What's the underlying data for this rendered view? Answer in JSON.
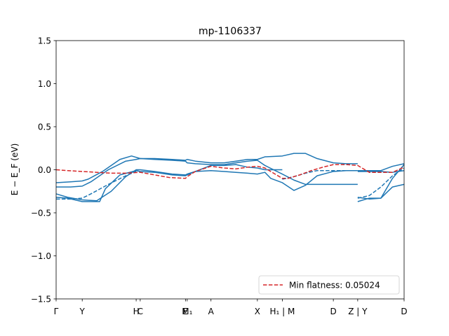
{
  "chart_data": {
    "type": "line",
    "title": "mp-1106337",
    "xlabel": "",
    "ylabel": "E − E_F (eV)",
    "ylim": [
      -1.5,
      1.5
    ],
    "xlim": [
      0,
      6.0
    ],
    "y_ticks": [
      -1.5,
      -1.0,
      -0.5,
      0.0,
      0.5,
      1.0,
      1.5
    ],
    "y_tick_labels": [
      "−1.5",
      "−1.0",
      "−0.5",
      "0.0",
      "0.5",
      "1.0",
      "1.5"
    ],
    "x_ticks": [
      {
        "x": 0.0,
        "label": "Γ"
      },
      {
        "x": 0.45,
        "label": "Y"
      },
      {
        "x": 1.38,
        "label": "H"
      },
      {
        "x": 1.45,
        "label": "C"
      },
      {
        "x": 2.23,
        "label": "E"
      },
      {
        "x": 2.26,
        "label": "M₁"
      },
      {
        "x": 2.67,
        "label": "A"
      },
      {
        "x": 3.47,
        "label": "X"
      },
      {
        "x": 3.9,
        "label": "H₁ | M"
      },
      {
        "x": 4.78,
        "label": "D"
      },
      {
        "x": 5.2,
        "label": "Z | Y"
      },
      {
        "x": 6.0,
        "label": "D"
      }
    ],
    "grid": false,
    "legend": {
      "placement": "bottom-right",
      "entries": [
        "Min flatness: 0.05024"
      ]
    },
    "colors": {
      "bands": "#1f77b4",
      "flat_band": "#d62728"
    },
    "series": [
      {
        "style": "solid",
        "color": "#1f77b4",
        "x": [
          0,
          0.25,
          0.45,
          0.55,
          0.8,
          1.1,
          1.3,
          1.45,
          1.7,
          2.0,
          2.23,
          2.26,
          2.4,
          2.67,
          2.9,
          3.1,
          3.3,
          3.47,
          3.6,
          3.9,
          4.1,
          4.3,
          4.5,
          4.78,
          5.0,
          5.2
        ],
        "y": [
          -0.15,
          -0.14,
          -0.13,
          -0.11,
          -0.02,
          0.12,
          0.16,
          0.13,
          0.13,
          0.12,
          0.11,
          0.12,
          0.1,
          0.08,
          0.08,
          0.1,
          0.12,
          0.12,
          0.15,
          0.16,
          0.19,
          0.19,
          0.13,
          0.08,
          0.07,
          0.07
        ]
      },
      {
        "style": "solid",
        "color": "#1f77b4",
        "x": [
          0,
          0.25,
          0.45,
          0.6,
          0.9,
          1.2,
          1.38,
          1.45,
          1.7,
          2.0,
          2.23,
          2.26,
          2.4,
          2.67,
          2.9,
          3.1,
          3.3,
          3.47,
          3.6,
          3.9,
          4.1,
          4.3,
          4.5,
          4.78,
          5.0,
          5.2
        ],
        "y": [
          -0.2,
          -0.2,
          -0.19,
          -0.14,
          0.0,
          0.1,
          0.12,
          0.13,
          0.12,
          0.11,
          0.1,
          0.08,
          0.07,
          0.06,
          0.06,
          0.08,
          0.1,
          0.11,
          0.05,
          -0.05,
          -0.12,
          -0.17,
          -0.17,
          -0.17,
          -0.17,
          -0.17
        ]
      },
      {
        "style": "solid",
        "color": "#1f77b4",
        "x": [
          0,
          0.2,
          0.45,
          0.7,
          0.95,
          1.2,
          1.38,
          1.45,
          1.7,
          2.0,
          2.23,
          2.26,
          2.4,
          2.67,
          2.9,
          3.1,
          3.3,
          3.47,
          3.6,
          3.7,
          3.9,
          4.1,
          4.3,
          4.5,
          4.78,
          5.0,
          5.2
        ],
        "y": [
          -0.28,
          -0.32,
          -0.35,
          -0.36,
          -0.25,
          -0.08,
          0.0,
          0.0,
          -0.02,
          -0.05,
          -0.06,
          -0.05,
          -0.02,
          -0.01,
          -0.02,
          -0.03,
          -0.04,
          -0.05,
          -0.03,
          -0.1,
          -0.15,
          -0.24,
          -0.18,
          -0.07,
          -0.02,
          -0.01,
          -0.01
        ]
      },
      {
        "style": "solid",
        "color": "#1f77b4",
        "x": [
          0,
          0.2,
          0.45,
          0.75,
          0.85,
          1.1,
          1.38,
          1.45,
          1.7,
          2.0,
          2.23,
          2.26,
          2.4,
          2.67,
          2.9,
          3.1,
          3.3,
          3.47,
          3.6,
          3.9
        ],
        "y": [
          -0.32,
          -0.33,
          -0.37,
          -0.37,
          -0.22,
          -0.06,
          -0.01,
          -0.02,
          -0.03,
          -0.06,
          -0.07,
          -0.06,
          -0.02,
          0.05,
          0.05,
          0.06,
          0.03,
          0.02,
          0.0,
          0.0
        ]
      },
      {
        "style": "solid",
        "color": "#1f77b4",
        "x": [
          5.2,
          5.4,
          5.6,
          5.8,
          6.0
        ],
        "y": [
          -0.37,
          -0.33,
          -0.33,
          -0.2,
          -0.17
        ]
      },
      {
        "style": "solid",
        "color": "#1f77b4",
        "x": [
          5.2,
          5.4,
          5.6,
          5.8,
          6.0
        ],
        "y": [
          -0.32,
          -0.34,
          -0.33,
          -0.1,
          0.06
        ]
      },
      {
        "style": "solid",
        "color": "#1f77b4",
        "x": [
          5.2,
          5.4,
          5.6,
          5.8,
          6.0
        ],
        "y": [
          -0.02,
          -0.02,
          -0.02,
          -0.03,
          -0.01
        ]
      },
      {
        "style": "solid",
        "color": "#1f77b4",
        "x": [
          5.2,
          5.4,
          5.6,
          5.8,
          6.0
        ],
        "y": [
          -0.01,
          -0.01,
          -0.01,
          0.04,
          0.07
        ]
      },
      {
        "style": "dashed",
        "color": "#1f77b4",
        "x": [
          0,
          0.25,
          0.45,
          0.6,
          0.9,
          1.2,
          1.38
        ],
        "y": [
          -0.34,
          -0.34,
          -0.33,
          -0.28,
          -0.17,
          -0.07,
          -0.02
        ]
      },
      {
        "style": "dashed",
        "color": "#1f77b4",
        "x": [
          3.9,
          4.1,
          4.3,
          4.5,
          4.78,
          5.0,
          5.2
        ],
        "y": [
          -0.11,
          -0.08,
          -0.04,
          -0.01,
          -0.01,
          -0.01,
          -0.01
        ]
      },
      {
        "style": "dashed",
        "color": "#1f77b4",
        "x": [
          5.2,
          5.4,
          5.6,
          5.8,
          6.0
        ],
        "y": [
          -0.33,
          -0.3,
          -0.2,
          -0.07,
          0.02
        ]
      },
      {
        "style": "dashed",
        "color": "#d62728",
        "name": "Min flatness: 0.05024",
        "x": [
          0,
          0.2,
          0.45,
          0.7,
          0.95,
          1.2,
          1.45,
          1.7,
          1.95,
          2.23,
          2.26,
          2.4,
          2.67,
          2.9,
          3.1,
          3.3,
          3.47,
          3.6,
          3.9,
          4.0,
          4.2,
          4.4,
          4.6,
          4.78,
          5.0,
          5.2,
          5.4,
          5.6,
          5.8,
          6.0
        ],
        "y": [
          0.0,
          -0.01,
          -0.02,
          -0.03,
          -0.04,
          -0.04,
          -0.03,
          -0.06,
          -0.09,
          -0.1,
          -0.08,
          -0.02,
          0.04,
          0.02,
          0.01,
          0.03,
          0.04,
          0.02,
          -0.1,
          -0.1,
          -0.06,
          -0.01,
          0.03,
          0.06,
          0.06,
          0.05,
          -0.03,
          -0.03,
          -0.03,
          0.03
        ]
      }
    ]
  }
}
